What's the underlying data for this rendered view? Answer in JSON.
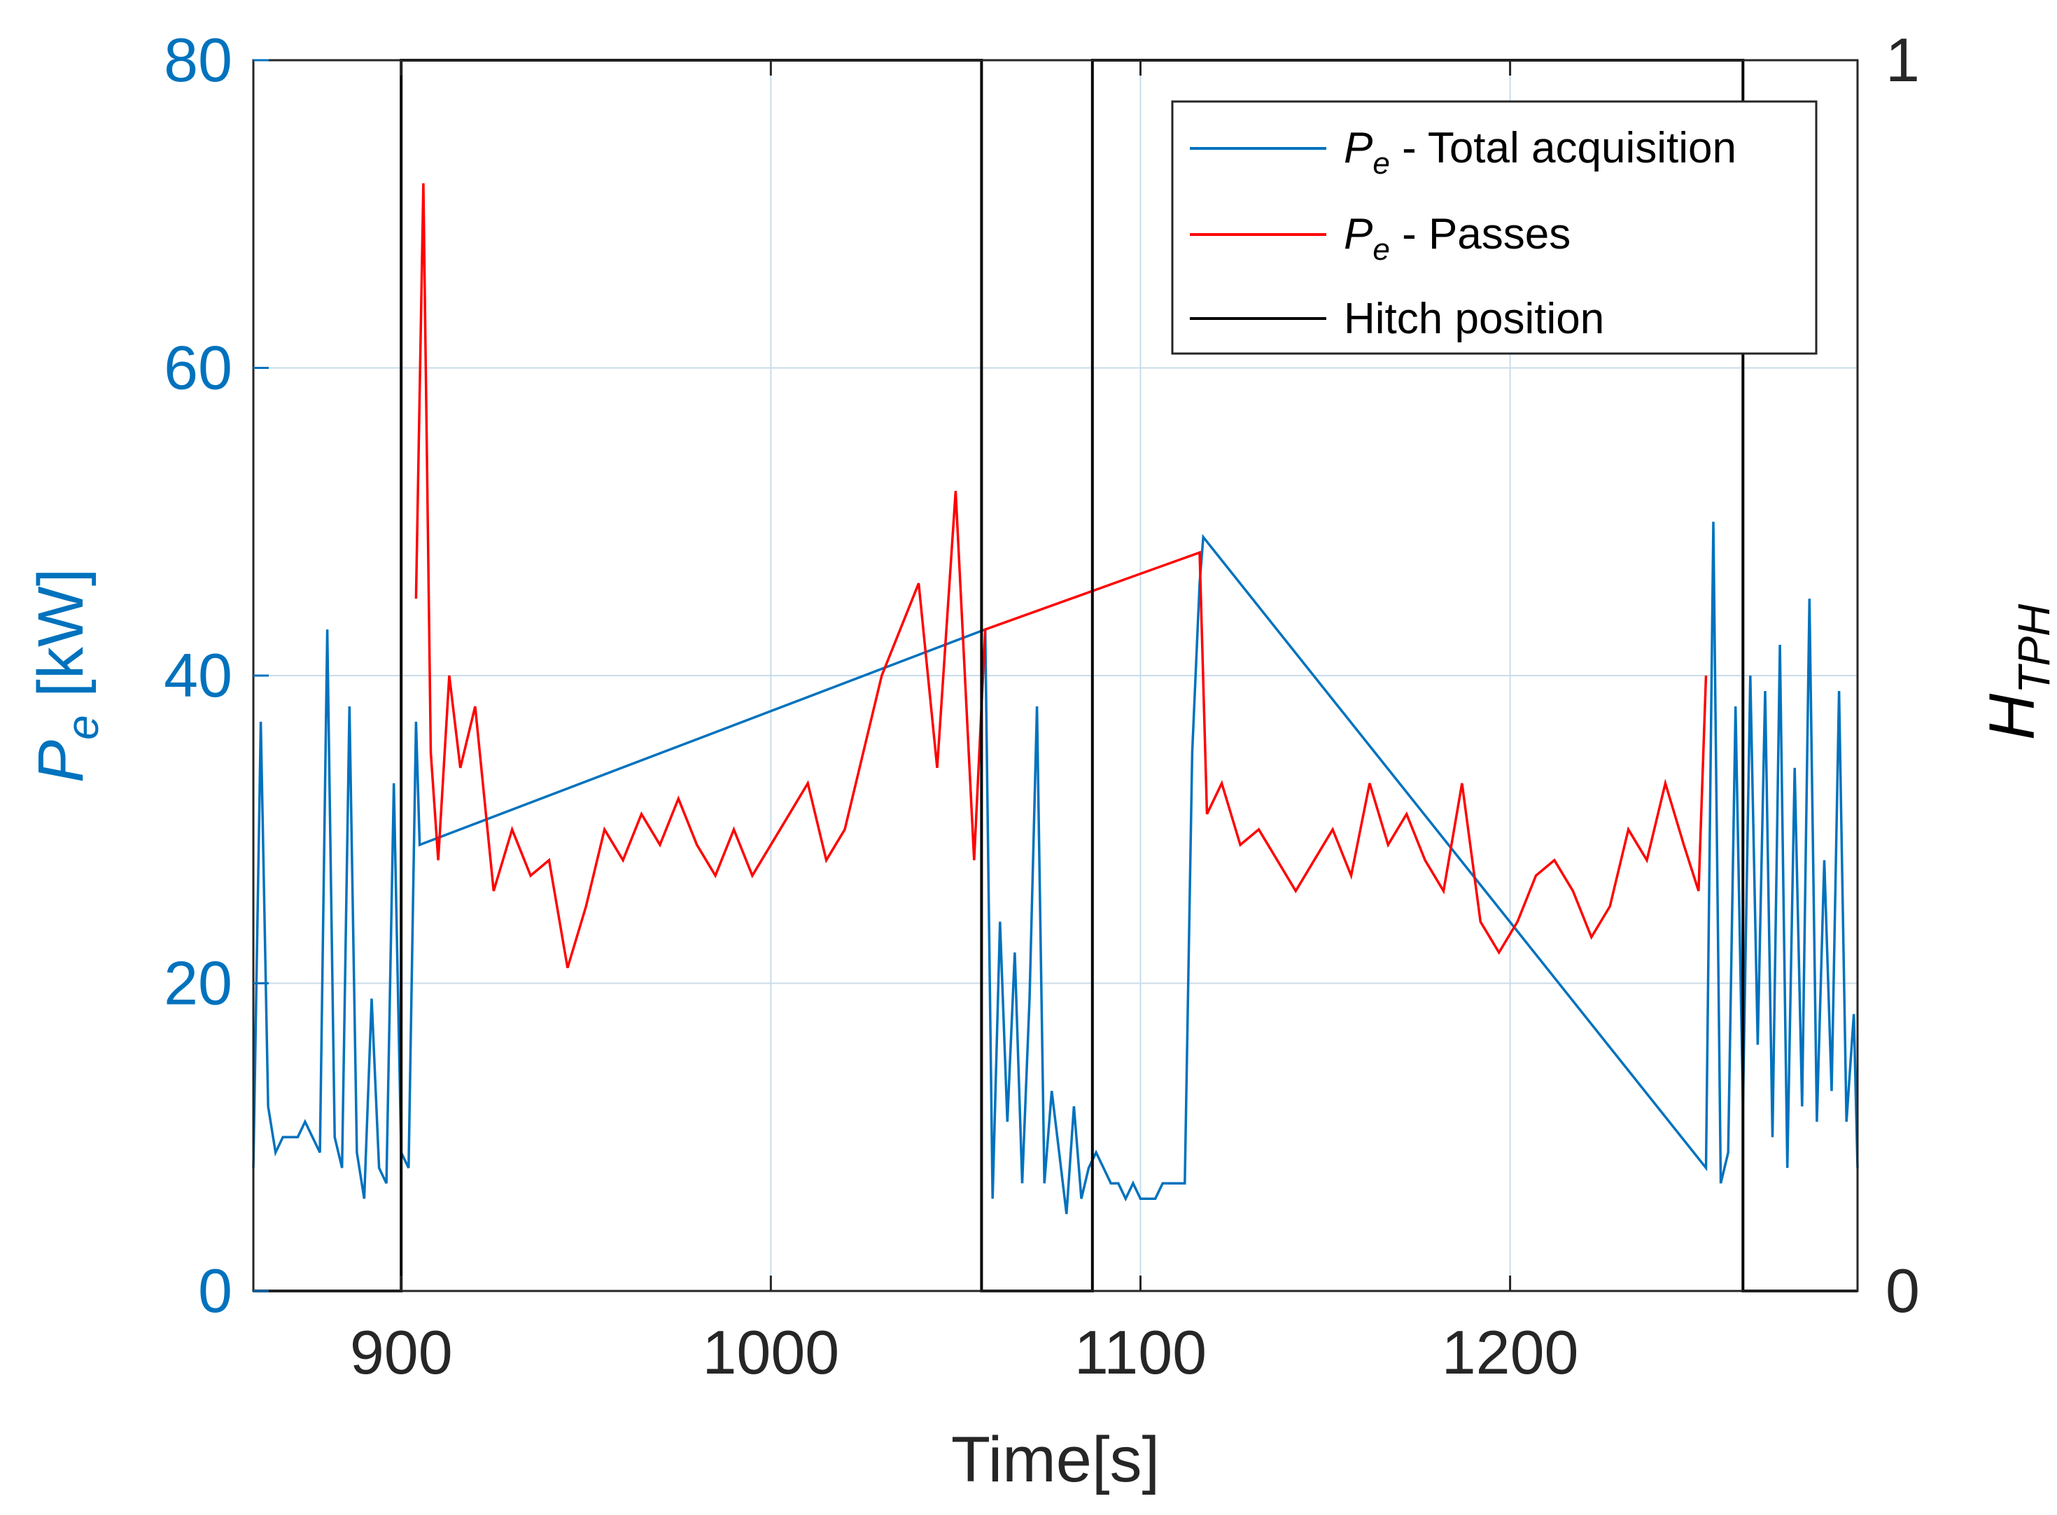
{
  "chart_data": {
    "type": "line",
    "xlabel": "Time[s]",
    "ylabel_left": {
      "main": "P",
      "sub": "e",
      "unit": " [kW]"
    },
    "ylabel_right": {
      "main": "H",
      "sub": "TPH"
    },
    "xlim": [
      860,
      1294
    ],
    "ylim_left": [
      0,
      80
    ],
    "ylim_right": [
      0,
      1
    ],
    "xticks": [
      900,
      1000,
      1100,
      1200
    ],
    "xtick_labels": [
      "900",
      "1000",
      "1100",
      "1200"
    ],
    "yticks_left": [
      0,
      20,
      40,
      60,
      80
    ],
    "ytick_labels_left": [
      "0",
      "20",
      "40",
      "60",
      "80"
    ],
    "yticks_right": [
      0,
      1
    ],
    "ytick_labels_right": [
      "0",
      "1"
    ],
    "grid": true,
    "legend_position": "top-right",
    "colors": {
      "total": "#0072BD",
      "passes": "#FF0000",
      "hitch": "#000000",
      "axis": "#262626",
      "left_axis": "#0072BD",
      "grid": "#C8DCEB"
    },
    "series": [
      {
        "name": "Pe - Total acquisition",
        "legend": {
          "main": "P",
          "sub": "e",
          "rest": " - Total acquisition"
        },
        "axis": "left",
        "color": "#0072BD",
        "x": [
          860,
          862,
          864,
          866,
          868,
          870,
          872,
          874,
          876,
          878,
          880,
          882,
          884,
          886,
          888,
          890,
          892,
          894,
          896,
          898,
          900,
          902,
          904,
          905,
          1058,
          1060,
          1062,
          1064,
          1066,
          1068,
          1070,
          1072,
          1074,
          1076,
          1078,
          1080,
          1082,
          1084,
          1086,
          1088,
          1090,
          1092,
          1094,
          1096,
          1098,
          1100,
          1102,
          1104,
          1106,
          1108,
          1110,
          1112,
          1114,
          1116,
          1117,
          1253,
          1255,
          1257,
          1259,
          1261,
          1263,
          1265,
          1267,
          1269,
          1271,
          1273,
          1275,
          1277,
          1279,
          1281,
          1283,
          1285,
          1287,
          1289,
          1291,
          1293,
          1294
        ],
        "y": [
          8,
          37,
          12,
          9,
          10,
          10,
          10,
          11,
          10,
          9,
          43,
          10,
          8,
          38,
          9,
          6,
          19,
          8,
          7,
          33,
          9,
          8,
          37,
          29,
          43,
          6,
          24,
          11,
          22,
          7,
          19,
          38,
          7,
          13,
          9,
          5,
          12,
          6,
          8,
          9,
          8,
          7,
          7,
          6,
          7,
          6,
          6,
          6,
          7,
          7,
          7,
          7,
          35,
          46,
          49,
          8,
          50,
          7,
          9,
          38,
          12,
          40,
          16,
          39,
          10,
          42,
          8,
          34,
          12,
          45,
          11,
          28,
          13,
          39,
          11,
          18,
          8
        ]
      },
      {
        "name": "Pe - Passes",
        "legend": {
          "main": "P",
          "sub": "e",
          "rest": " - Passes"
        },
        "axis": "left",
        "color": "#FF0000",
        "x": [
          904,
          906,
          908,
          910,
          913,
          916,
          920,
          925,
          930,
          935,
          940,
          945,
          950,
          955,
          960,
          965,
          970,
          975,
          980,
          985,
          990,
          995,
          1000,
          1005,
          1010,
          1015,
          1020,
          1025,
          1030,
          1035,
          1040,
          1045,
          1050,
          1055,
          1058,
          1116,
          1118,
          1122,
          1127,
          1132,
          1137,
          1142,
          1147,
          1152,
          1157,
          1162,
          1167,
          1172,
          1177,
          1182,
          1187,
          1192,
          1197,
          1202,
          1207,
          1212,
          1217,
          1222,
          1227,
          1232,
          1237,
          1242,
          1247,
          1251,
          1253
        ],
        "y": [
          45,
          72,
          35,
          28,
          40,
          34,
          38,
          26,
          30,
          27,
          28,
          21,
          25,
          30,
          28,
          31,
          29,
          32,
          29,
          27,
          30,
          27,
          29,
          31,
          33,
          28,
          30,
          35,
          40,
          43,
          46,
          34,
          52,
          28,
          43,
          48,
          31,
          33,
          29,
          30,
          28,
          26,
          28,
          30,
          27,
          33,
          29,
          31,
          28,
          26,
          33,
          24,
          22,
          24,
          27,
          28,
          26,
          23,
          25,
          30,
          28,
          33,
          29,
          26,
          40
        ]
      },
      {
        "name": "Hitch position",
        "legend": {
          "main": "",
          "sub": "",
          "rest": "Hitch position"
        },
        "axis": "right",
        "color": "#000000",
        "x": [
          860,
          900,
          900,
          1057,
          1057,
          1087,
          1087,
          1263,
          1263,
          1294
        ],
        "y": [
          0,
          0,
          1,
          1,
          0,
          0,
          1,
          1,
          0,
          0
        ]
      }
    ]
  }
}
